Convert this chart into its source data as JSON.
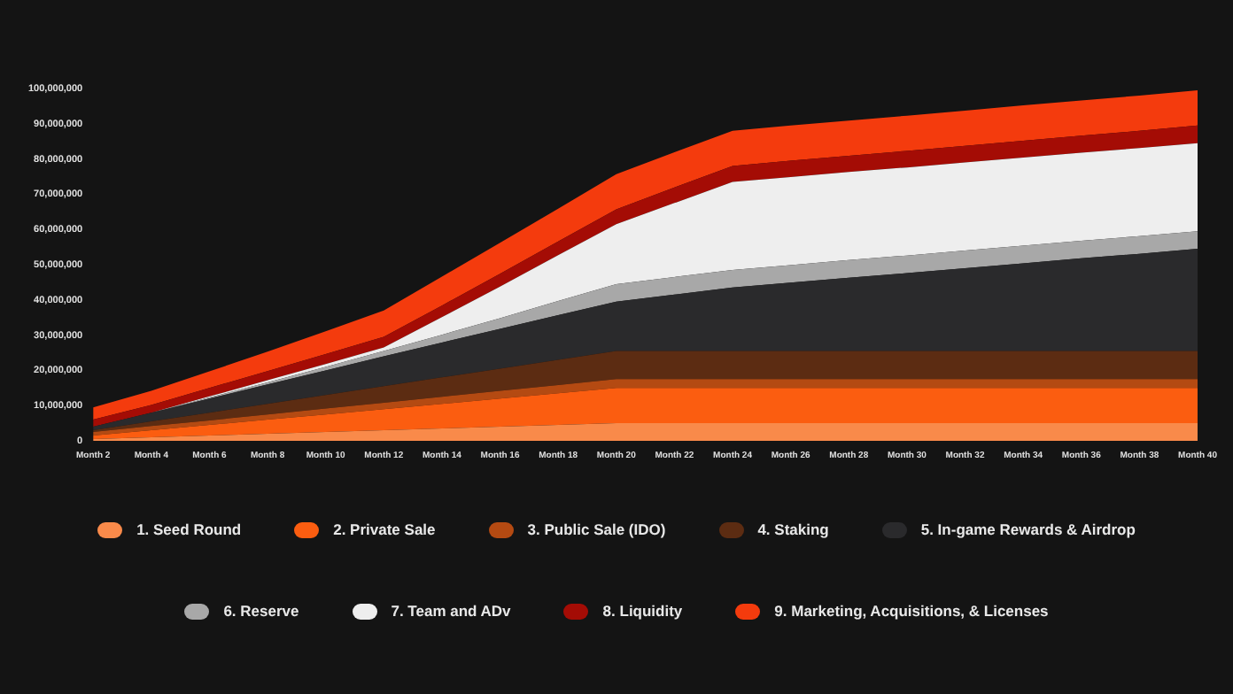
{
  "chart_data": {
    "type": "area",
    "stacked": true,
    "legend": "bottom",
    "categories": [
      "Month 2",
      "Month 4",
      "Month 6",
      "Month 8",
      "Month 10",
      "Month 12",
      "Month 14",
      "Month 16",
      "Month 18",
      "Month 20",
      "Month 22",
      "Month 24",
      "Month 26",
      "Month 28",
      "Month 30",
      "Month 32",
      "Month 34",
      "Month 36",
      "Month 38",
      "Month 40"
    ],
    "ylim": [
      0,
      100000000
    ],
    "yticks": [
      0,
      {
        "value": 10000000,
        "label": "10,000,000"
      },
      {
        "value": 20000000,
        "label": "20,000,000"
      },
      {
        "value": 30000000,
        "label": "30,000,000"
      },
      {
        "value": 40000000,
        "label": "40,000,000"
      },
      {
        "value": 50000000,
        "label": "50,000,000"
      },
      {
        "value": 60000000,
        "label": "60,000,000"
      },
      {
        "value": 70000000,
        "label": "70,000,000"
      },
      {
        "value": 80000000,
        "label": "80,000,000"
      },
      {
        "value": 90000000,
        "label": "90,000,000"
      },
      {
        "value": 100000000,
        "label": "100,000,000"
      }
    ],
    "series": [
      {
        "name": "1. Seed Round",
        "color": "#f98a4a",
        "values": [
          500000,
          1000000,
          1500000,
          2000000,
          2500000,
          3000000,
          3500000,
          4000000,
          4500000,
          5000000,
          5000000,
          5000000,
          5000000,
          5000000,
          5000000,
          5000000,
          5000000,
          5000000,
          5000000,
          5000000
        ]
      },
      {
        "name": "2. Private Sale",
        "color": "#fb5d10",
        "values": [
          1000000,
          2000000,
          3000000,
          4000000,
          5000000,
          6000000,
          7000000,
          8000000,
          9000000,
          10000000,
          10000000,
          10000000,
          10000000,
          10000000,
          10000000,
          10000000,
          10000000,
          10000000,
          10000000,
          10000000
        ]
      },
      {
        "name": "3. Public Sale (IDO)",
        "color": "#b44a12",
        "values": [
          1000000,
          1200000,
          1300000,
          1500000,
          1700000,
          1800000,
          2000000,
          2200000,
          2300000,
          2500000,
          2500000,
          2500000,
          2500000,
          2500000,
          2500000,
          2500000,
          2500000,
          2500000,
          2500000,
          2500000
        ]
      },
      {
        "name": "4. Staking",
        "color": "#5c2c12",
        "values": [
          500000,
          1300000,
          2200000,
          3000000,
          3800000,
          4700000,
          5500000,
          6300000,
          7200000,
          8000000,
          8000000,
          8000000,
          8000000,
          8000000,
          8000000,
          8000000,
          8000000,
          8000000,
          8000000,
          8000000
        ]
      },
      {
        "name": "5. In-game Rewards & Airdrop",
        "color": "#2a2a2c",
        "values": [
          1000000,
          2500000,
          4000000,
          5500000,
          7000000,
          8500000,
          9900000,
          11300000,
          12700000,
          14000000,
          16000000,
          18000000,
          19400000,
          20800000,
          22100000,
          23500000,
          24900000,
          26300000,
          27600000,
          29000000
        ]
      },
      {
        "name": "6. Reserve",
        "color": "#a8a8a8",
        "values": [
          0,
          0,
          300000,
          600000,
          1000000,
          1500000,
          2200000,
          3000000,
          4000000,
          5000000,
          5000000,
          5000000,
          5000000,
          5000000,
          5000000,
          5000000,
          5000000,
          5000000,
          5000000,
          5000000
        ]
      },
      {
        "name": "7. Team and ADv",
        "color": "#eeeeee",
        "values": [
          0,
          0,
          300000,
          600000,
          800000,
          1000000,
          5000000,
          9000000,
          13000000,
          17000000,
          21000000,
          25000000,
          25000000,
          25000000,
          25000000,
          25000000,
          25000000,
          25000000,
          25000000,
          25000000
        ]
      },
      {
        "name": "8. Liquidity",
        "color": "#a40c05",
        "values": [
          2000000,
          2200000,
          2400000,
          2600000,
          2800000,
          3000000,
          3300000,
          3600000,
          3900000,
          4200000,
          4400000,
          4500000,
          4600000,
          4600000,
          4700000,
          4700000,
          4800000,
          4800000,
          4900000,
          5000000
        ]
      },
      {
        "name": "9. Marketing, Acquisitions, & Licenses",
        "color": "#f43b0d",
        "values": [
          3500000,
          4000000,
          4700000,
          5500000,
          6500000,
          7500000,
          8200000,
          8800000,
          9300000,
          10000000,
          10000000,
          10000000,
          10000000,
          10000000,
          10000000,
          10000000,
          10000000,
          10000000,
          10000000,
          10000000
        ]
      }
    ]
  }
}
